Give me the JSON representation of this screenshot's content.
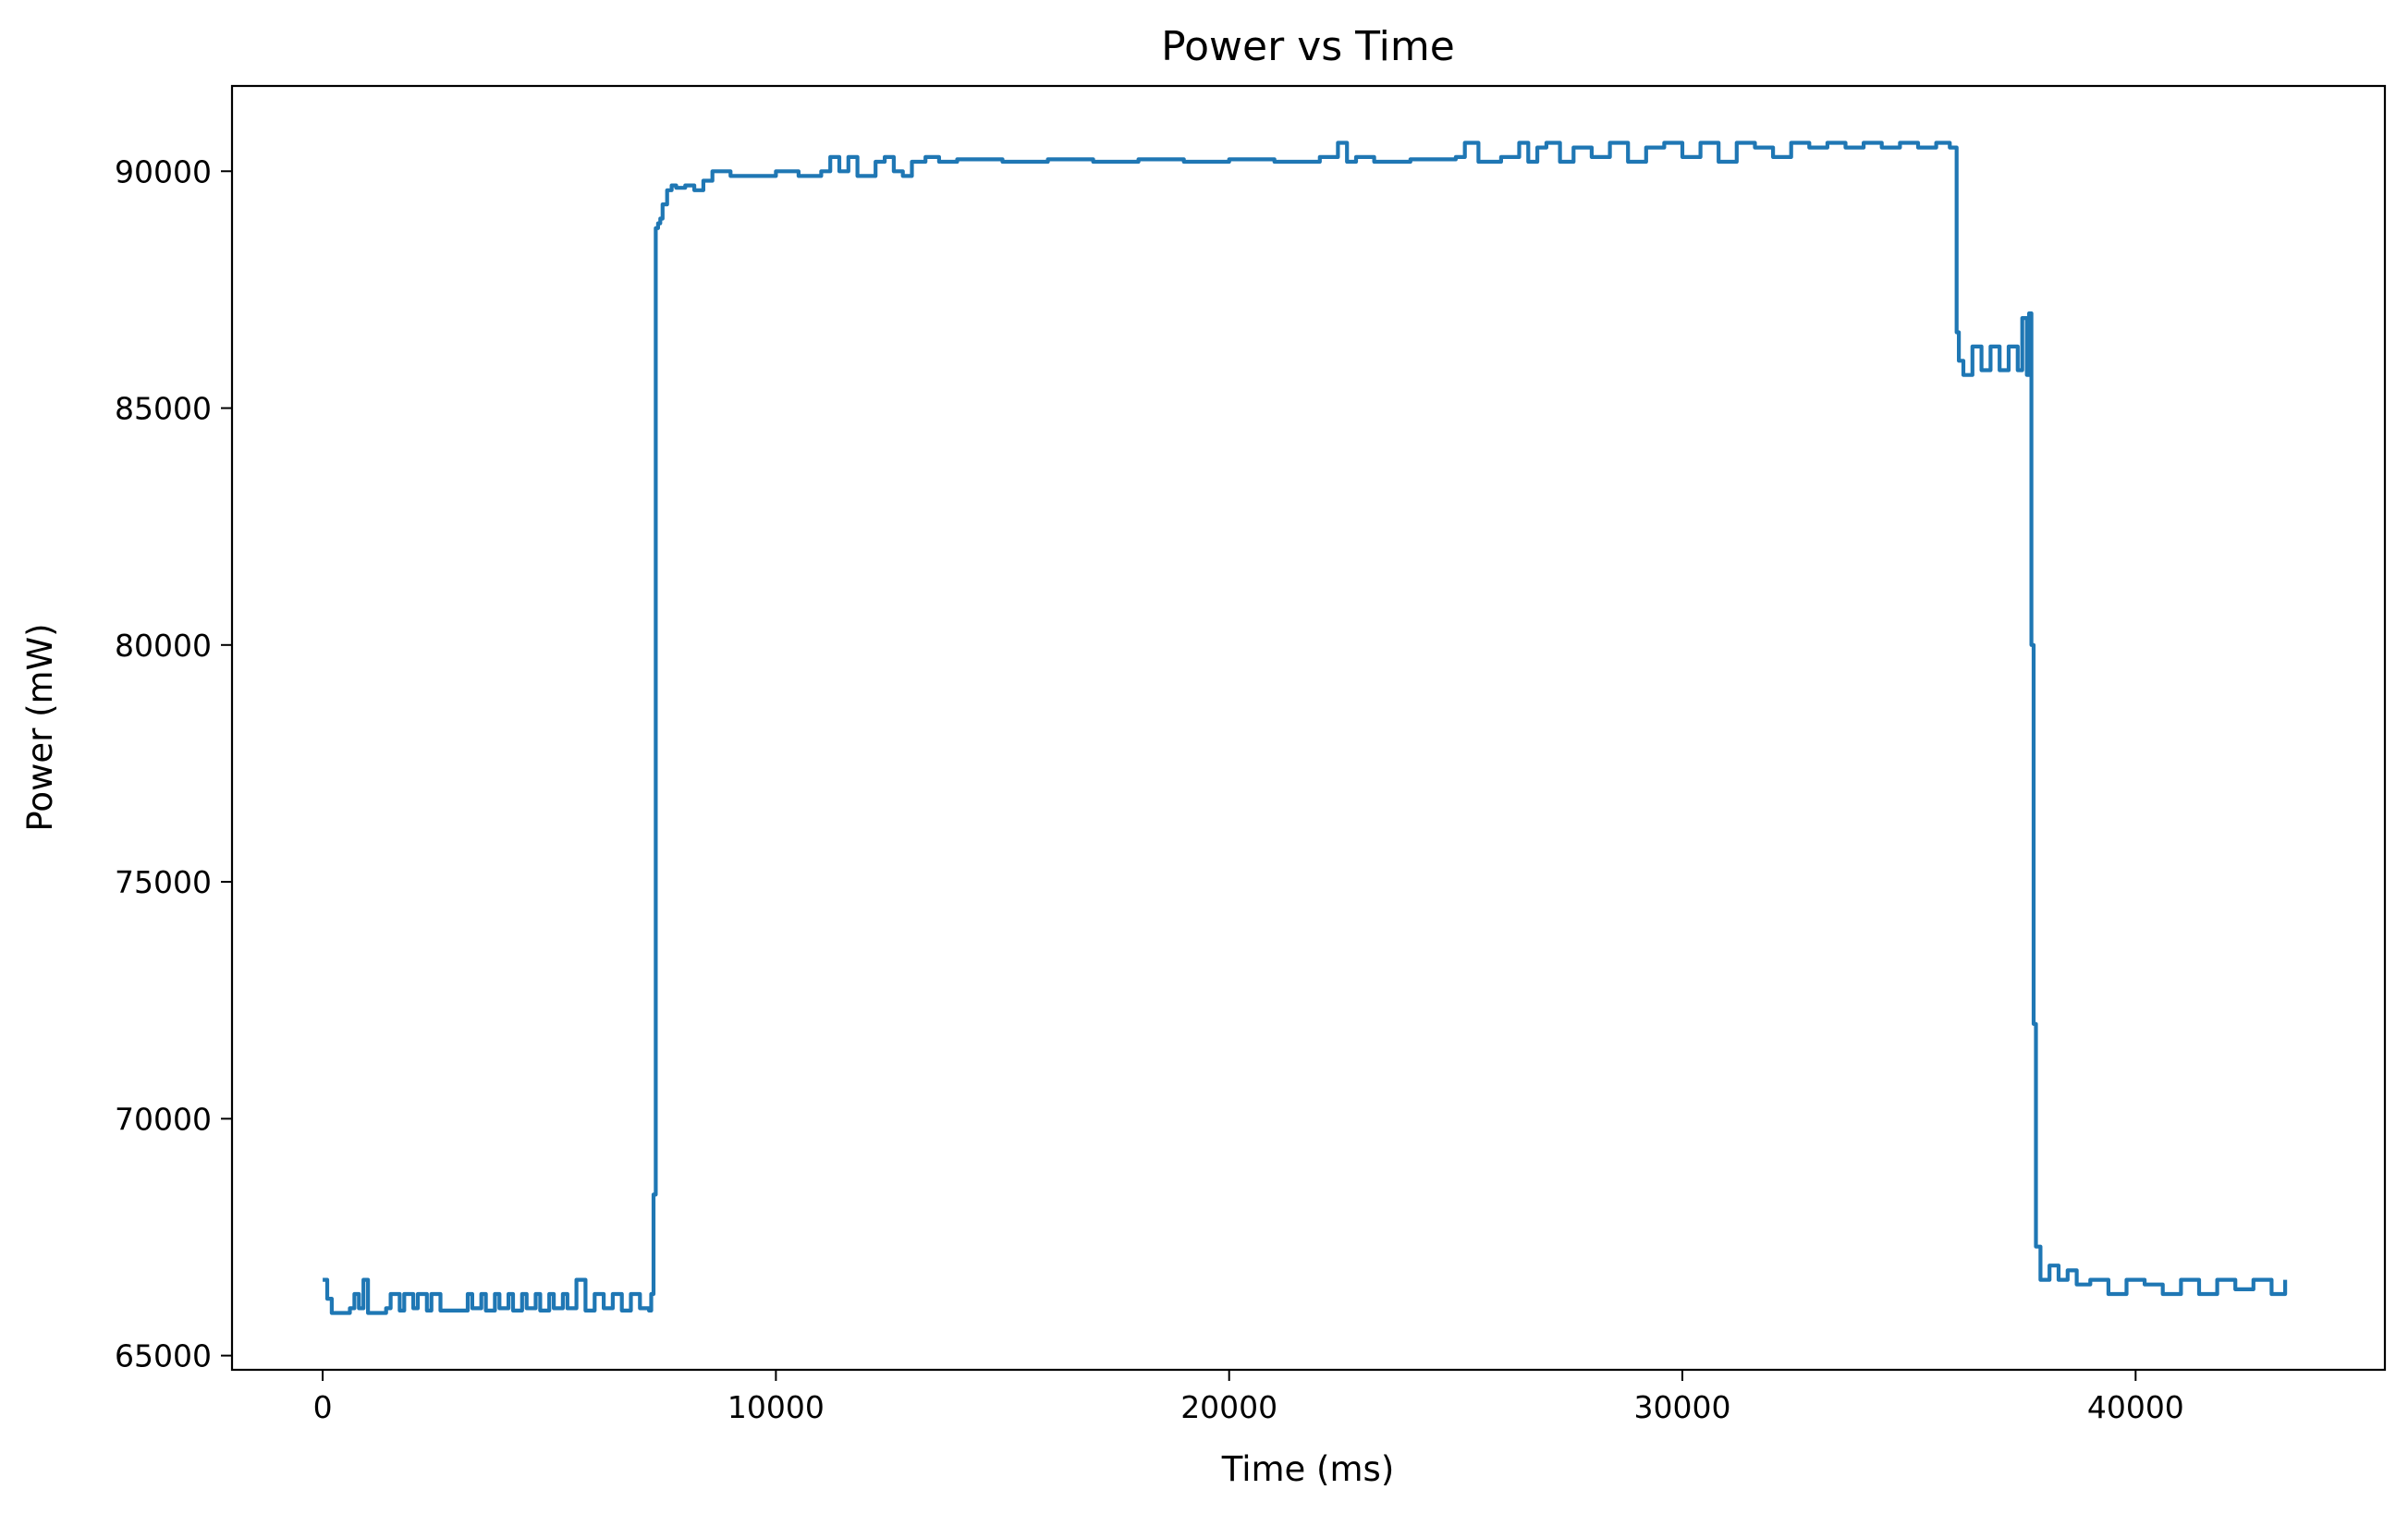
{
  "chart_data": {
    "type": "line",
    "title": "Power vs Time",
    "xlabel": "Time (ms)",
    "ylabel": "Power (mW)",
    "xlim": [
      -2000,
      45500
    ],
    "ylim": [
      64700,
      91800
    ],
    "x_ticks": [
      0,
      10000,
      20000,
      30000,
      40000
    ],
    "y_ticks": [
      65000,
      70000,
      75000,
      80000,
      85000,
      90000
    ],
    "grid": false,
    "legend": "none",
    "colors": {
      "line": "#1f77b4",
      "axes": "#000000",
      "background": "#ffffff"
    },
    "series": [
      {
        "x": [
          0,
          100,
          200,
          600,
          700,
          800,
          900,
          1000,
          1400,
          1500,
          1700,
          1800,
          2000,
          2100,
          2300,
          2400,
          2600,
          3200,
          3300,
          3500,
          3600,
          3800,
          3900,
          4100,
          4200,
          4400,
          4500,
          4700,
          4800,
          5000,
          5100,
          5300,
          5400,
          5600,
          5800,
          6000,
          6200,
          6400,
          6600,
          6800,
          7000,
          7200,
          7250,
          7300,
          7350,
          7400,
          7450,
          7500,
          7600,
          7700,
          7800,
          8000,
          8200,
          8400,
          8600,
          9000,
          10000,
          10500,
          11000,
          11200,
          11400,
          11600,
          11800,
          12200,
          12400,
          12600,
          12800,
          13000,
          13300,
          13600,
          14000,
          15000,
          16000,
          17000,
          18000,
          19000,
          20000,
          21000,
          22000,
          22400,
          22600,
          22800,
          23200,
          24000,
          25000,
          25200,
          25500,
          26000,
          26400,
          26600,
          26800,
          27000,
          27300,
          27600,
          28000,
          28400,
          28800,
          29200,
          29600,
          30000,
          30400,
          30800,
          31200,
          31600,
          32000,
          32400,
          32800,
          33200,
          33600,
          34000,
          34400,
          34800,
          35200,
          35600,
          35900,
          36000,
          36050,
          36100,
          36200,
          36400,
          36600,
          36800,
          37000,
          37200,
          37400,
          37500,
          37600,
          37650,
          37700,
          37750,
          37800,
          37900,
          38100,
          38300,
          38500,
          38700,
          39000,
          39400,
          39800,
          40200,
          40600,
          41000,
          41400,
          41800,
          42200,
          42600,
          43000,
          43300
        ],
        "y": [
          66600,
          66200,
          65900,
          66000,
          66300,
          66000,
          66600,
          65900,
          66000,
          66300,
          65950,
          66300,
          66000,
          66300,
          65950,
          66300,
          65950,
          66300,
          66000,
          66300,
          65950,
          66300,
          66000,
          66300,
          65950,
          66300,
          66000,
          66300,
          65950,
          66300,
          66000,
          66300,
          66000,
          66600,
          65950,
          66300,
          66000,
          66300,
          65950,
          66300,
          66000,
          65950,
          66300,
          68400,
          88800,
          88900,
          89000,
          89300,
          89600,
          89700,
          89650,
          89700,
          89600,
          89800,
          90000,
          89900,
          90000,
          89900,
          90000,
          90300,
          90000,
          90300,
          89900,
          90200,
          90300,
          90000,
          89900,
          90200,
          90300,
          90200,
          90250,
          90200,
          90250,
          90200,
          90250,
          90200,
          90250,
          90200,
          90300,
          90600,
          90200,
          90300,
          90200,
          90250,
          90300,
          90600,
          90200,
          90300,
          90600,
          90200,
          90500,
          90600,
          90200,
          90500,
          90300,
          90600,
          90200,
          90500,
          90600,
          90300,
          90600,
          90200,
          90600,
          90500,
          90300,
          90600,
          90500,
          90600,
          90500,
          90600,
          90500,
          90600,
          90500,
          90600,
          90500,
          90500,
          86600,
          86000,
          85700,
          86300,
          85800,
          86300,
          85800,
          86300,
          85800,
          86900,
          85700,
          87000,
          80000,
          72000,
          67300,
          66600,
          66900,
          66600,
          66800,
          66500,
          66600,
          66300,
          66600,
          66500,
          66300,
          66600,
          66300,
          66600,
          66400,
          66600,
          66300,
          66600
        ]
      }
    ]
  }
}
